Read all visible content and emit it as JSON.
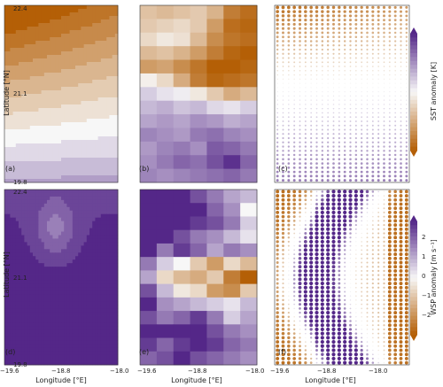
{
  "chart_data": {
    "type": "heatmap",
    "colors": {
      "negative": "#b45f06",
      "neutral": "#f7f7f7",
      "positive": "#542788"
    },
    "shared_axes": {
      "xlabel": "Longitude [°E]",
      "ylabel": "Latitude [°N]",
      "xlim": [
        -19.6,
        -18.0
      ],
      "ylim": [
        19.8,
        22.4
      ],
      "xticks": [
        "−19.6",
        "−18.8",
        "−18.0"
      ],
      "yticks": [
        "19.8",
        "21.1",
        "22.4"
      ]
    },
    "colorbars": [
      {
        "label": "SST anomaly [K]",
        "ticks": [],
        "range": [
          -1,
          1
        ]
      },
      {
        "label": "WSP anomaly [m s⁻¹]",
        "ticks": [
          "2",
          "1",
          "0",
          "−1",
          "−2"
        ],
        "range": [
          -2.5,
          2.5
        ]
      }
    ],
    "panels": [
      {
        "id": "a",
        "label": "(a)",
        "style": "contour",
        "variable": "SST anomaly"
      },
      {
        "id": "b",
        "label": "(b)",
        "style": "pixel",
        "variable": "SST anomaly",
        "grid": [
          [
            -0.35,
            -0.4,
            -0.35,
            -0.3,
            -0.45,
            -0.8,
            -0.9
          ],
          [
            -0.3,
            -0.25,
            -0.2,
            -0.3,
            -0.6,
            -0.9,
            -0.95
          ],
          [
            -0.2,
            -0.1,
            -0.15,
            -0.4,
            -0.7,
            -0.85,
            -0.9
          ],
          [
            -0.4,
            -0.35,
            -0.45,
            -0.6,
            -0.8,
            -0.95,
            -1.0
          ],
          [
            -0.6,
            -0.55,
            -0.7,
            -0.85,
            -1.0,
            -1.0,
            -0.95
          ],
          [
            -0.05,
            -0.2,
            -0.5,
            -0.8,
            -0.95,
            -0.9,
            -0.85
          ],
          [
            0.2,
            0.1,
            0.05,
            -0.1,
            -0.3,
            -0.5,
            -0.4
          ],
          [
            0.3,
            0.35,
            0.25,
            0.3,
            0.15,
            0.1,
            0.2
          ],
          [
            0.4,
            0.45,
            0.4,
            0.5,
            0.45,
            0.35,
            0.4
          ],
          [
            0.55,
            0.5,
            0.45,
            0.6,
            0.65,
            0.55,
            0.5
          ],
          [
            0.45,
            0.55,
            0.6,
            0.5,
            0.75,
            0.7,
            0.6
          ],
          [
            0.5,
            0.6,
            0.7,
            0.65,
            0.8,
            0.95,
            0.7
          ],
          [
            0.55,
            0.5,
            0.55,
            0.6,
            0.65,
            0.7,
            0.6
          ]
        ]
      },
      {
        "id": "c",
        "label": "(c)",
        "style": "dot",
        "variable": "SST anomaly"
      },
      {
        "id": "d",
        "label": "(d)",
        "style": "contour",
        "variable": "WSP anomaly"
      },
      {
        "id": "e",
        "label": "(e)",
        "style": "pixel",
        "variable": "WSP anomaly",
        "grid": [
          [
            1.0,
            1.4,
            1.2,
            0.8,
            0.6,
            0.4,
            0.3
          ],
          [
            1.2,
            1.6,
            1.5,
            1.0,
            0.7,
            0.5,
            0.0
          ],
          [
            1.0,
            1.3,
            1.1,
            0.9,
            0.8,
            0.6,
            0.2
          ],
          [
            1.4,
            1.0,
            0.8,
            0.6,
            0.5,
            0.3,
            0.1
          ],
          [
            1.2,
            0.6,
            0.9,
            0.7,
            0.4,
            0.6,
            0.5
          ],
          [
            0.6,
            0.2,
            0.0,
            -0.3,
            -0.6,
            -0.2,
            -0.4
          ],
          [
            0.4,
            -0.2,
            -0.4,
            -0.5,
            -0.3,
            -0.8,
            -1.2
          ],
          [
            0.8,
            0.3,
            -0.1,
            -0.2,
            -0.6,
            -0.7,
            -0.3
          ],
          [
            1.0,
            0.5,
            0.4,
            0.3,
            0.2,
            0.1,
            0.3
          ],
          [
            0.8,
            0.6,
            0.7,
            0.9,
            0.6,
            0.2,
            0.4
          ],
          [
            1.0,
            1.2,
            1.1,
            1.0,
            0.8,
            0.6,
            0.5
          ],
          [
            0.9,
            0.7,
            0.9,
            1.1,
            0.9,
            0.7,
            0.6
          ],
          [
            0.7,
            0.8,
            1.0,
            0.8,
            0.7,
            0.6,
            0.5
          ]
        ]
      },
      {
        "id": "f",
        "label": "(f)",
        "style": "dot",
        "variable": "WSP anomaly"
      }
    ]
  }
}
